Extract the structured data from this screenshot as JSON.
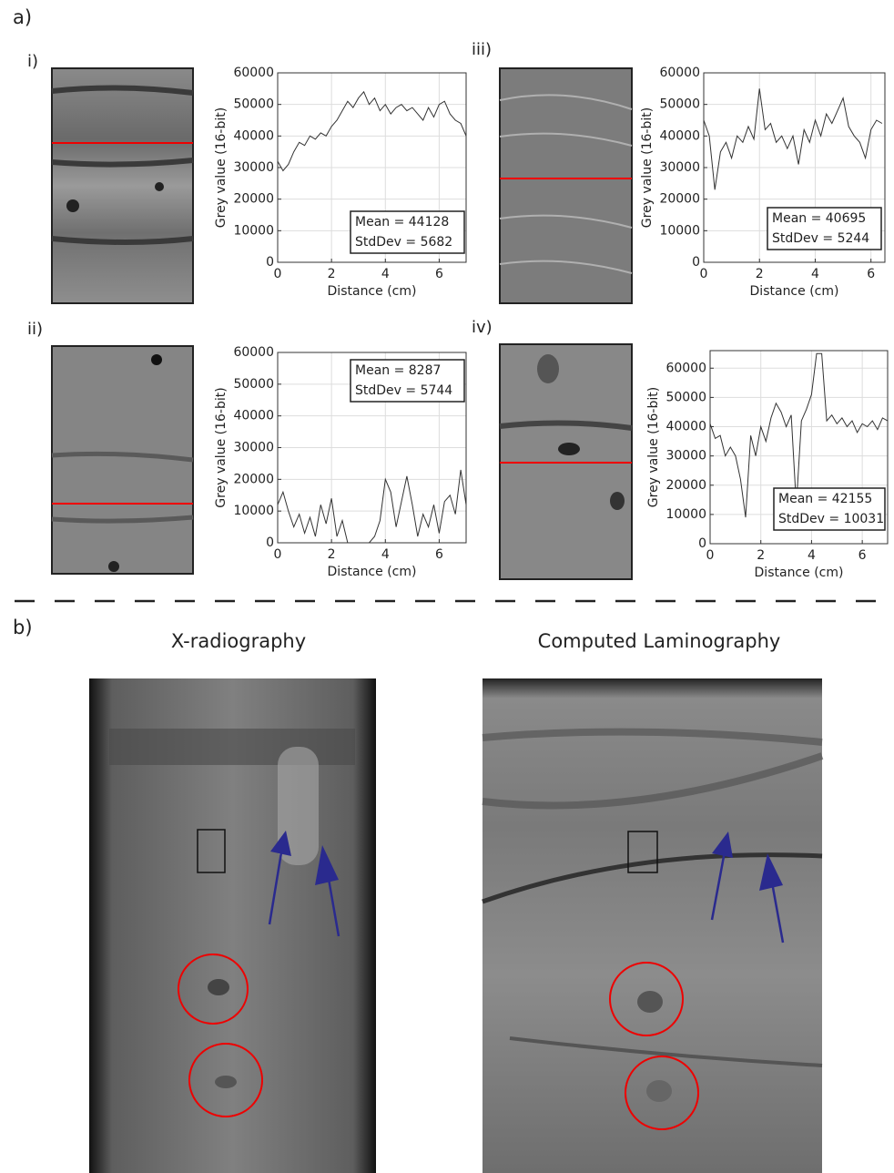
{
  "section_labels": [
    "a)",
    "b)"
  ],
  "image_titles": [
    "X-radiography",
    "Computed Laminography"
  ],
  "chart_data": [
    {
      "type": "line",
      "panel_label": "i)",
      "x_label": "Distance (cm)",
      "y_label": "Grey value (16-bit)",
      "color": "#333333",
      "grid": true,
      "x": [
        0,
        0.2,
        0.4,
        0.6,
        0.8,
        1,
        1.2,
        1.4,
        1.6,
        1.8,
        2,
        2.2,
        2.4,
        2.6,
        2.8,
        3,
        3.2,
        3.4,
        3.6,
        3.8,
        4,
        4.2,
        4.4,
        4.6,
        4.8,
        5,
        5.2,
        5.4,
        5.6,
        5.8,
        6,
        6.2,
        6.4,
        6.6,
        6.8,
        7
      ],
      "values": [
        32000,
        29000,
        31000,
        35000,
        38000,
        37000,
        40000,
        39000,
        41000,
        40000,
        43000,
        45000,
        48000,
        51000,
        49000,
        52000,
        54000,
        50000,
        52000,
        48000,
        50000,
        47000,
        49000,
        50000,
        48000,
        49000,
        47000,
        45000,
        49000,
        46000,
        50000,
        51000,
        47000,
        45000,
        44000,
        40000
      ],
      "xlim": [
        0,
        7
      ],
      "xticks": [
        0,
        2,
        4,
        6
      ],
      "ylim": [
        0,
        60000
      ],
      "yticks": [
        0,
        10000,
        20000,
        30000,
        40000,
        50000,
        60000
      ],
      "annotations": [
        "Mean = 44128",
        "StdDev = 5682"
      ]
    },
    {
      "type": "line",
      "panel_label": "ii)",
      "x_label": "Distance (cm)",
      "y_label": "Grey value (16-bit)",
      "color": "#333333",
      "grid": true,
      "x": [
        0,
        0.2,
        0.4,
        0.6,
        0.8,
        1,
        1.2,
        1.4,
        1.6,
        1.8,
        2,
        2.2,
        2.4,
        2.6,
        2.8,
        3,
        3.2,
        3.4,
        3.6,
        3.8,
        4,
        4.2,
        4.4,
        4.6,
        4.8,
        5,
        5.2,
        5.4,
        5.6,
        5.8,
        6,
        6.2,
        6.4,
        6.6,
        6.8,
        7
      ],
      "values": [
        12000,
        16000,
        10000,
        5000,
        9000,
        3000,
        8000,
        2000,
        12000,
        6000,
        14000,
        2000,
        7000,
        0,
        0,
        0,
        0,
        0,
        2000,
        7000,
        20000,
        16000,
        5000,
        13000,
        21000,
        12000,
        2000,
        9000,
        5000,
        12000,
        3000,
        13000,
        15000,
        9000,
        23000,
        12000
      ],
      "xlim": [
        0,
        7
      ],
      "xticks": [
        0,
        2,
        4,
        6
      ],
      "ylim": [
        0,
        60000
      ],
      "yticks": [
        0,
        10000,
        20000,
        30000,
        40000,
        50000,
        60000
      ],
      "annotations": [
        "Mean = 8287",
        "StdDev = 5744"
      ]
    },
    {
      "type": "line",
      "panel_label": "iii)",
      "x_label": "Distance (cm)",
      "y_label": "Grey value (16-bit)",
      "color": "#333333",
      "grid": true,
      "x": [
        0,
        0.2,
        0.4,
        0.6,
        0.8,
        1,
        1.2,
        1.4,
        1.6,
        1.8,
        2,
        2.2,
        2.4,
        2.6,
        2.8,
        3,
        3.2,
        3.4,
        3.6,
        3.8,
        4,
        4.2,
        4.4,
        4.6,
        4.8,
        5,
        5.2,
        5.4,
        5.6,
        5.8,
        6,
        6.2,
        6.4
      ],
      "values": [
        45000,
        40000,
        23000,
        35000,
        38000,
        33000,
        40000,
        38000,
        43000,
        39000,
        55000,
        42000,
        44000,
        38000,
        40000,
        36000,
        40000,
        31000,
        42000,
        38000,
        45000,
        40000,
        47000,
        44000,
        48000,
        52000,
        43000,
        40000,
        38000,
        33000,
        42000,
        45000,
        44000
      ],
      "xlim": [
        0,
        6.5
      ],
      "xticks": [
        0,
        2,
        4,
        6
      ],
      "ylim": [
        0,
        60000
      ],
      "yticks": [
        0,
        10000,
        20000,
        30000,
        40000,
        50000,
        60000
      ],
      "annotations": [
        "Mean = 40695",
        "StdDev = 5244"
      ]
    },
    {
      "type": "line",
      "panel_label": "iv)",
      "x_label": "Distance (cm)",
      "y_label": "Grey value (16-bit)",
      "color": "#333333",
      "grid": true,
      "x": [
        0,
        0.2,
        0.4,
        0.6,
        0.8,
        1,
        1.2,
        1.4,
        1.6,
        1.8,
        2,
        2.2,
        2.4,
        2.6,
        2.8,
        3,
        3.2,
        3.4,
        3.6,
        3.8,
        4,
        4.2,
        4.4,
        4.6,
        4.8,
        5,
        5.2,
        5.4,
        5.6,
        5.8,
        6,
        6.2,
        6.4,
        6.6,
        6.8,
        7
      ],
      "values": [
        41000,
        36000,
        37000,
        30000,
        33000,
        30000,
        22000,
        9000,
        37000,
        30000,
        40000,
        35000,
        43000,
        48000,
        45000,
        40000,
        44000,
        13000,
        42000,
        46000,
        51000,
        65000,
        65000,
        42000,
        44000,
        41000,
        43000,
        40000,
        42000,
        38000,
        41000,
        40000,
        42000,
        39000,
        43000,
        42000
      ],
      "xlim": [
        0,
        7
      ],
      "xticks": [
        0,
        2,
        4,
        6
      ],
      "ylim": [
        0,
        66000
      ],
      "yticks": [
        0,
        10000,
        20000,
        30000,
        40000,
        50000,
        60000
      ],
      "annotations": [
        "Mean = 42155",
        "StdDev = 10031"
      ]
    }
  ]
}
